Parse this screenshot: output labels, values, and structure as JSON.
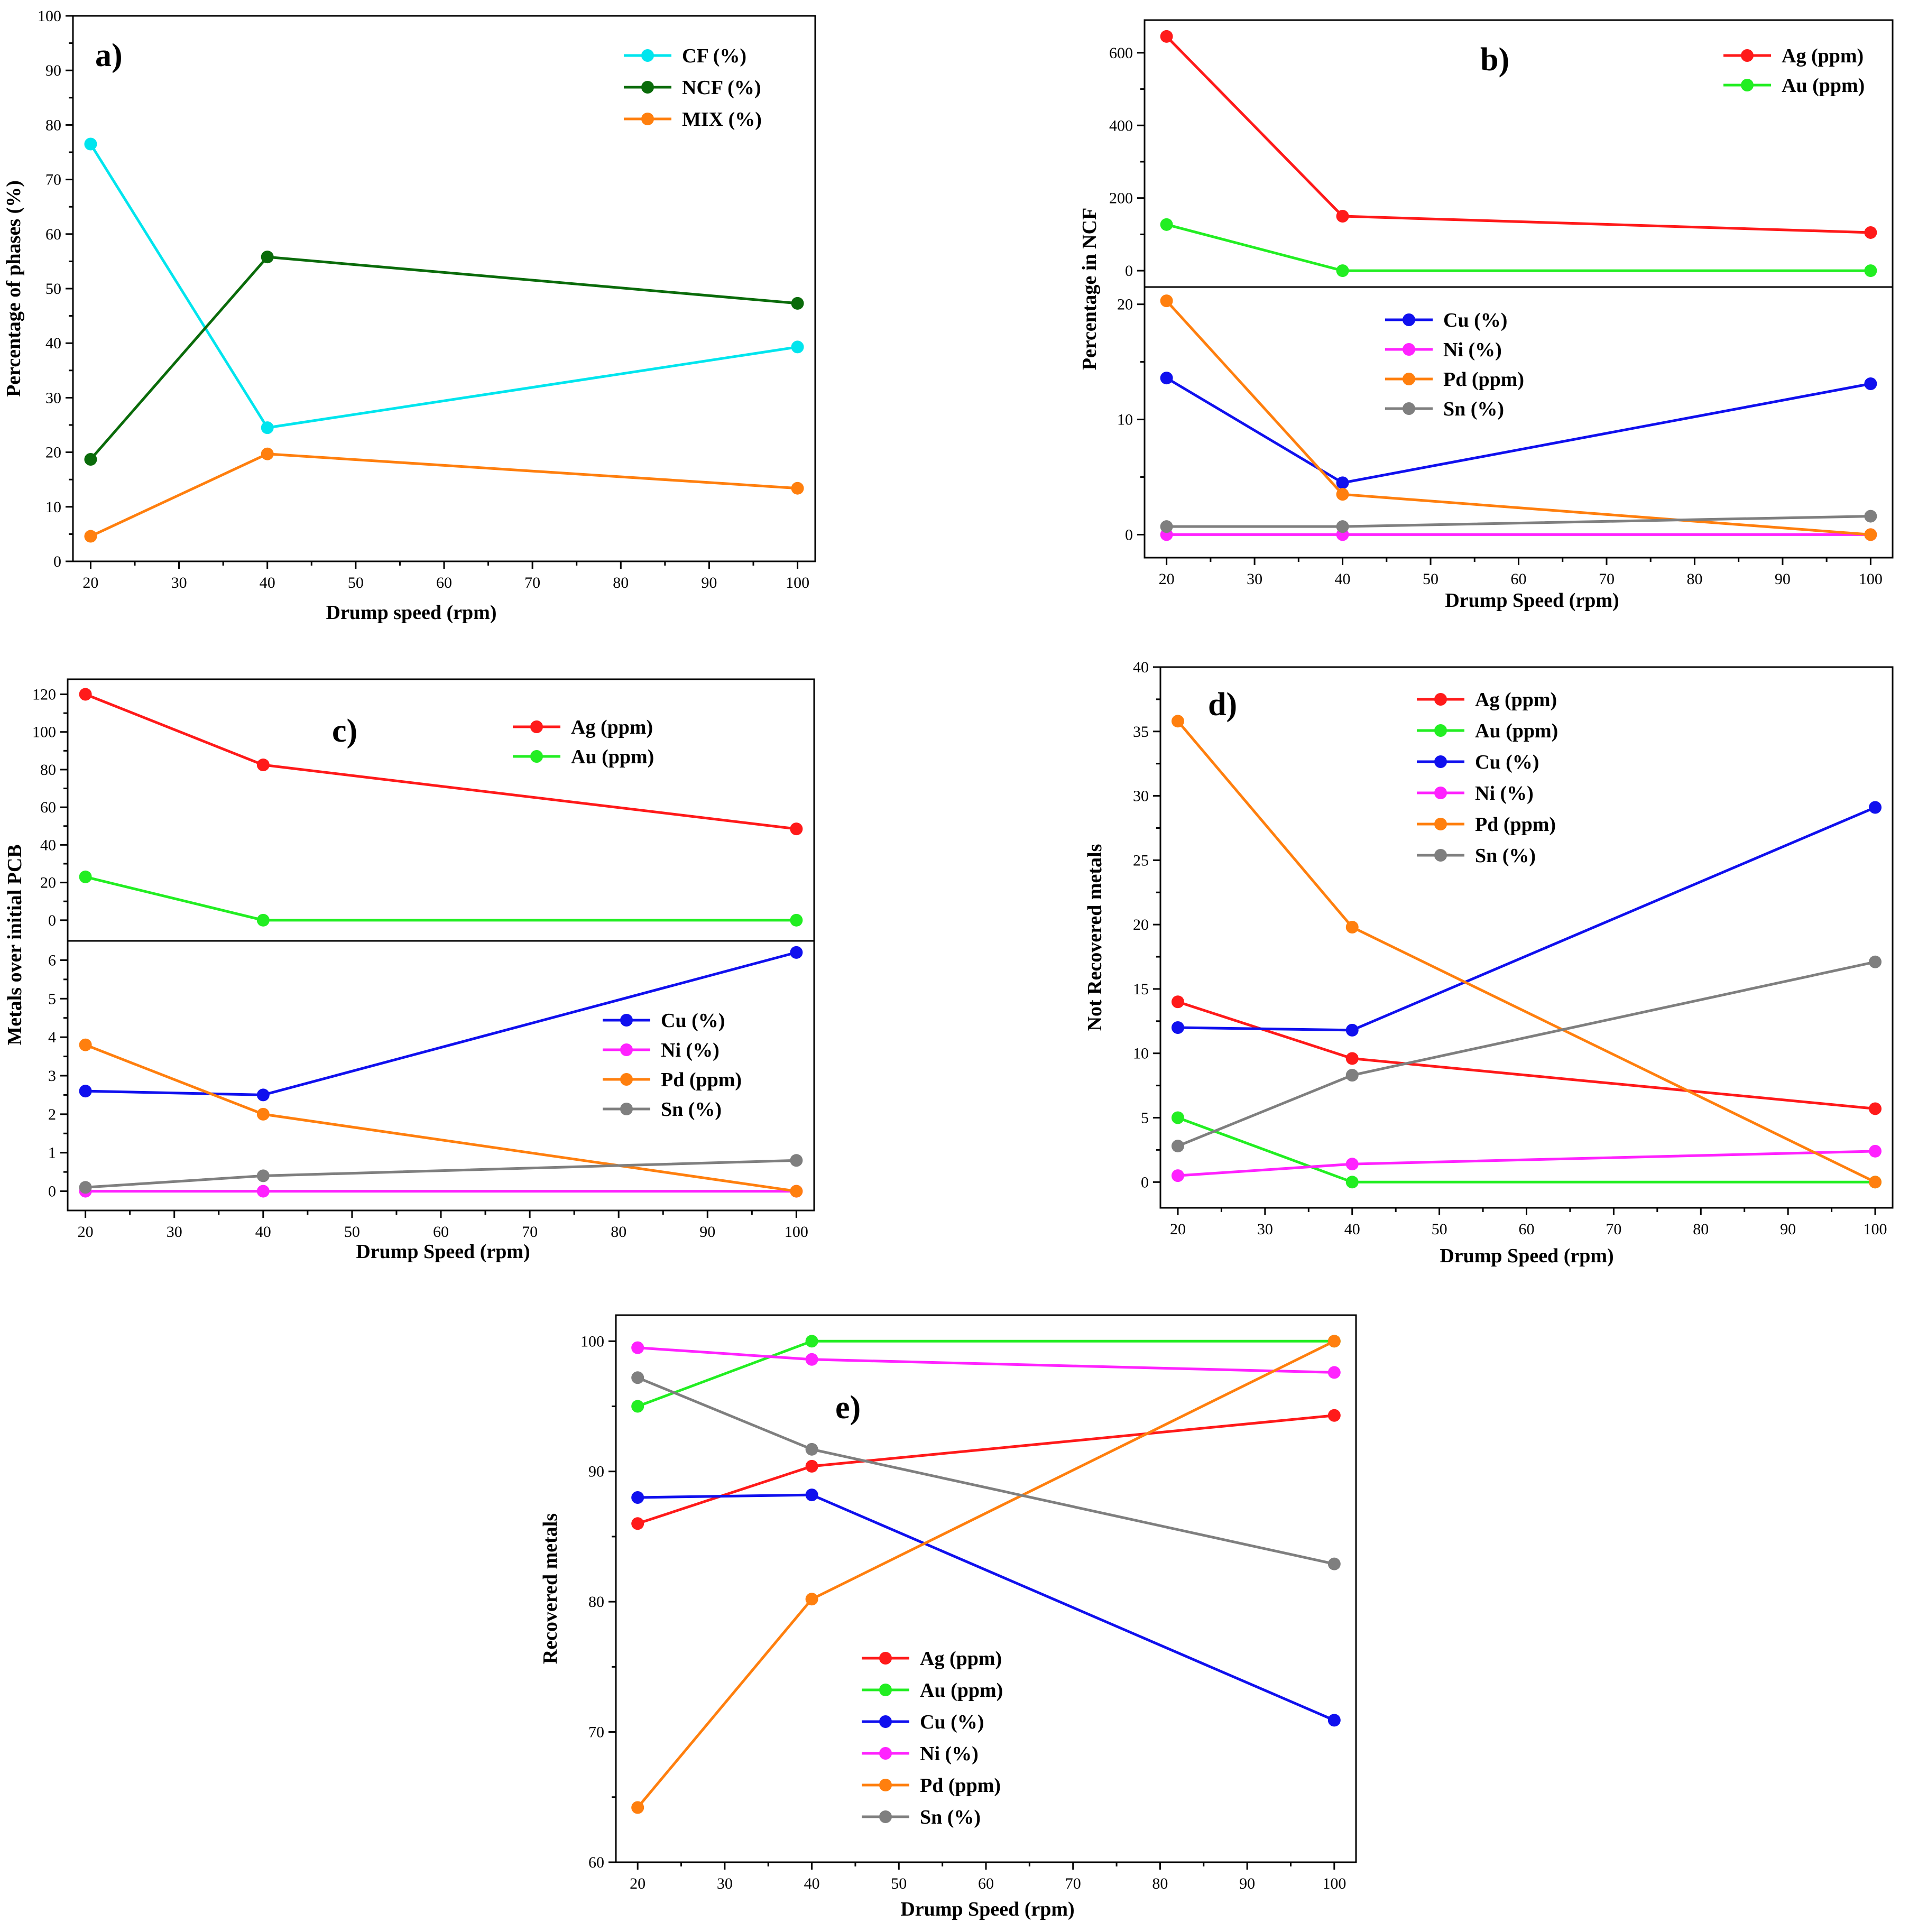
{
  "chart_data": [
    {
      "id": "a",
      "type": "line",
      "panel_label": "a)",
      "xlabel": "Drump speed (rpm)",
      "ylabel": "Percentage of phases (%)",
      "x": [
        20,
        40,
        100
      ],
      "xlim": [
        18,
        102
      ],
      "xticks": [
        "20",
        "30",
        "40",
        "50",
        "60",
        "70",
        "80",
        "90",
        "100"
      ],
      "ylim": [
        0,
        100
      ],
      "yticks": [
        "0",
        "10",
        "20",
        "30",
        "40",
        "50",
        "60",
        "70",
        "80",
        "90",
        "100"
      ],
      "legend_position": "top-right",
      "series": [
        {
          "name": "CF (%)",
          "color": "#00e5ee",
          "values": [
            76.5,
            24.5,
            39.3
          ]
        },
        {
          "name": "NCF (%)",
          "color": "#0a6b0a",
          "values": [
            18.7,
            55.8,
            47.3
          ]
        },
        {
          "name": "MIX (%)",
          "color": "#ff7f0e",
          "values": [
            4.6,
            19.7,
            13.4
          ]
        }
      ]
    },
    {
      "id": "b",
      "type": "line",
      "panel_label": "b)",
      "xlabel": "Drump Speed (rpm)",
      "ylabel": "Percentage in NCF",
      "x": [
        20,
        40,
        100
      ],
      "xlim": [
        17.5,
        102.5
      ],
      "xticks": [
        "20",
        "30",
        "40",
        "50",
        "60",
        "70",
        "80",
        "90",
        "100"
      ],
      "upper": {
        "ylim": [
          -45,
          690
        ],
        "yticks": [
          "0",
          "200",
          "400",
          "600"
        ],
        "legend_position": "top-right",
        "series": [
          {
            "name": "Ag (ppm)",
            "color": "#ff1a1a",
            "values": [
              645,
              150,
              105
            ]
          },
          {
            "name": "Au (ppm)",
            "color": "#22ee22",
            "values": [
              127,
              0,
              0
            ]
          }
        ]
      },
      "lower": {
        "ylim": [
          -2,
          21.5
        ],
        "yticks": [
          "0",
          "10",
          "20"
        ],
        "legend_position": "top-center",
        "series": [
          {
            "name": "Cu (%)",
            "color": "#1010ee",
            "values": [
              13.6,
              4.5,
              13.1
            ]
          },
          {
            "name": "Ni (%)",
            "color": "#ff22ff",
            "values": [
              0,
              0,
              0
            ]
          },
          {
            "name": "Pd (ppm)",
            "color": "#ff7f0e",
            "values": [
              20.3,
              3.5,
              0
            ]
          },
          {
            "name": "Sn (%)",
            "color": "#7f7f7f",
            "values": [
              0.7,
              0.7,
              1.6
            ]
          }
        ]
      }
    },
    {
      "id": "c",
      "type": "line",
      "panel_label": "c)",
      "xlabel": "Drump Speed (rpm)",
      "ylabel": "Metals over initial PCB",
      "x": [
        20,
        40,
        100
      ],
      "xlim": [
        18,
        102
      ],
      "xticks": [
        "20",
        "30",
        "40",
        "50",
        "60",
        "70",
        "80",
        "90",
        "100"
      ],
      "upper": {
        "ylim": [
          -11,
          128
        ],
        "yticks": [
          "0",
          "20",
          "40",
          "60",
          "80",
          "100",
          "120"
        ],
        "legend_position": "top-center",
        "series": [
          {
            "name": "Ag (ppm)",
            "color": "#ff1a1a",
            "values": [
              120,
              82.5,
              48.5
            ]
          },
          {
            "name": "Au (ppm)",
            "color": "#22ee22",
            "values": [
              23,
              0,
              0
            ]
          }
        ]
      },
      "lower": {
        "ylim": [
          -0.5,
          6.5
        ],
        "yticks": [
          "0",
          "1",
          "2",
          "3",
          "4",
          "5",
          "6"
        ],
        "legend_position": "center-right",
        "series": [
          {
            "name": "Cu (%)",
            "color": "#1010ee",
            "values": [
              2.6,
              2.5,
              6.2
            ]
          },
          {
            "name": "Ni (%)",
            "color": "#ff22ff",
            "values": [
              0,
              0,
              0
            ]
          },
          {
            "name": "Pd (ppm)",
            "color": "#ff7f0e",
            "values": [
              3.8,
              2.0,
              0
            ]
          },
          {
            "name": "Sn (%)",
            "color": "#7f7f7f",
            "values": [
              0.1,
              0.4,
              0.8
            ]
          }
        ]
      }
    },
    {
      "id": "d",
      "type": "line",
      "panel_label": "d)",
      "xlabel": "Drump Speed (rpm)",
      "ylabel": "Not Recovered metals",
      "x": [
        20,
        40,
        100
      ],
      "xlim": [
        18,
        102
      ],
      "xticks": [
        "20",
        "30",
        "40",
        "50",
        "60",
        "70",
        "80",
        "90",
        "100"
      ],
      "ylim": [
        -2,
        40
      ],
      "yticks": [
        "0",
        "5",
        "10",
        "15",
        "20",
        "25",
        "30",
        "35",
        "40"
      ],
      "legend_position": "top-center",
      "series": [
        {
          "name": "Ag (ppm)",
          "color": "#ff1a1a",
          "values": [
            14.0,
            9.6,
            5.7
          ]
        },
        {
          "name": "Au (ppm)",
          "color": "#22ee22",
          "values": [
            5.0,
            0,
            0
          ]
        },
        {
          "name": "Cu (%)",
          "color": "#1010ee",
          "values": [
            12.0,
            11.8,
            29.1
          ]
        },
        {
          "name": "Ni (%)",
          "color": "#ff22ff",
          "values": [
            0.5,
            1.4,
            2.4
          ]
        },
        {
          "name": "Pd (ppm)",
          "color": "#ff7f0e",
          "values": [
            35.8,
            19.8,
            0
          ]
        },
        {
          "name": "Sn (%)",
          "color": "#7f7f7f",
          "values": [
            2.8,
            8.3,
            17.1
          ]
        }
      ]
    },
    {
      "id": "e",
      "type": "line",
      "panel_label": "e)",
      "xlabel": "Drump Speed (rpm)",
      "ylabel": "Recovered metals",
      "x": [
        20,
        40,
        100
      ],
      "xlim": [
        17.5,
        102.5
      ],
      "xticks": [
        "20",
        "30",
        "40",
        "50",
        "60",
        "70",
        "80",
        "90",
        "100"
      ],
      "ylim": [
        60,
        102
      ],
      "yticks": [
        "60",
        "70",
        "80",
        "90",
        "100"
      ],
      "legend_position": "bottom-left",
      "series": [
        {
          "name": "Ag (ppm)",
          "color": "#ff1a1a",
          "values": [
            86.0,
            90.4,
            94.3
          ]
        },
        {
          "name": "Au (ppm)",
          "color": "#22ee22",
          "values": [
            95.0,
            100.0,
            100.0
          ]
        },
        {
          "name": "Cu (%)",
          "color": "#1010ee",
          "values": [
            88.0,
            88.2,
            70.9
          ]
        },
        {
          "name": "Ni (%)",
          "color": "#ff22ff",
          "values": [
            99.5,
            98.6,
            97.6
          ]
        },
        {
          "name": "Pd (ppm)",
          "color": "#ff7f0e",
          "values": [
            64.2,
            80.2,
            100.0
          ]
        },
        {
          "name": "Sn (%)",
          "color": "#7f7f7f",
          "values": [
            97.2,
            91.7,
            82.9
          ]
        }
      ]
    }
  ]
}
